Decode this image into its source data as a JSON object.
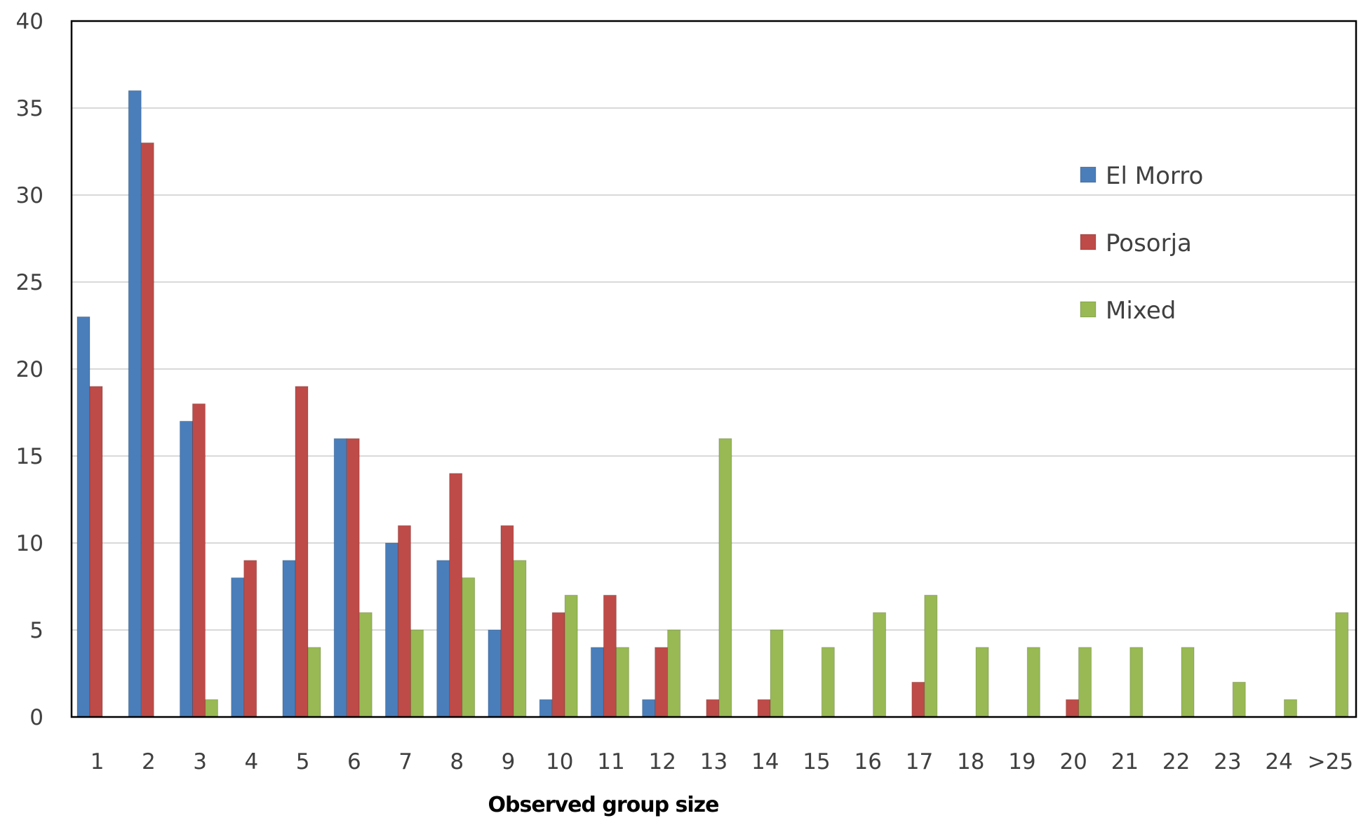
{
  "chart_data": {
    "type": "bar",
    "title": "",
    "xlabel": "Observed group size",
    "ylabel": "",
    "ylim": [
      0,
      40
    ],
    "yticks": [
      0,
      5,
      10,
      15,
      20,
      25,
      30,
      35,
      40
    ],
    "grid": "horizontal",
    "legend_position": "top-right",
    "categories": [
      "1",
      "2",
      "3",
      "4",
      "5",
      "6",
      "7",
      "8",
      "9",
      "10",
      "11",
      "12",
      "13",
      "14",
      "15",
      "16",
      "17",
      "18",
      "19",
      "20",
      "21",
      "22",
      "23",
      "24",
      ">25"
    ],
    "series": [
      {
        "name": "El Morro",
        "color": "#4A7EBB",
        "values": [
          23,
          36,
          17,
          8,
          9,
          16,
          10,
          9,
          5,
          1,
          4,
          1,
          0,
          0,
          0,
          0,
          0,
          0,
          0,
          0,
          0,
          0,
          0,
          0,
          0
        ]
      },
      {
        "name": "Posorja",
        "color": "#BE4B48",
        "values": [
          19,
          33,
          18,
          9,
          19,
          16,
          11,
          14,
          11,
          6,
          7,
          4,
          1,
          1,
          0,
          0,
          2,
          0,
          0,
          1,
          0,
          0,
          0,
          0,
          0
        ]
      },
      {
        "name": "Mixed",
        "color": "#98B954",
        "values": [
          0,
          0,
          1,
          0,
          4,
          6,
          5,
          8,
          9,
          7,
          4,
          5,
          16,
          5,
          4,
          6,
          7,
          4,
          4,
          4,
          4,
          4,
          2,
          1,
          6
        ]
      }
    ]
  }
}
